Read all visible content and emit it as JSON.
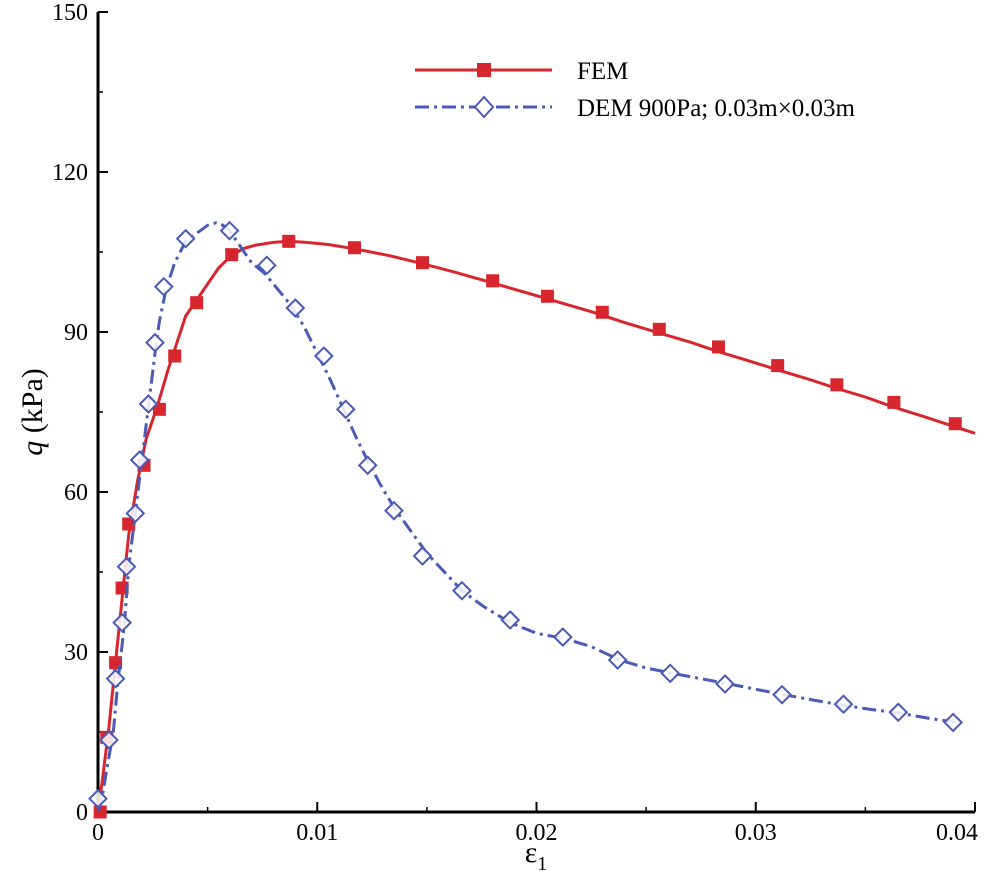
{
  "chart_data": {
    "type": "line",
    "title": "",
    "xlabel": "ε",
    "xlabel_subscript": "1",
    "ylabel_italic": "q",
    "ylabel_rest": " (kPa)",
    "xlim": [
      0,
      0.04
    ],
    "ylim": [
      0,
      150
    ],
    "x_ticks": [
      0,
      0.01,
      0.02,
      0.03,
      0.04
    ],
    "x_tick_labels": [
      "0",
      "0.01",
      "0.02",
      "0.03",
      "0.04"
    ],
    "y_ticks": [
      0,
      30,
      60,
      90,
      120,
      150
    ],
    "y_tick_labels": [
      "0",
      "30",
      "60",
      "90",
      "120",
      "150"
    ],
    "grid": false,
    "legend_position": "top-right",
    "series": [
      {
        "name": "FEM",
        "color": "#d7262e",
        "line_style": "solid",
        "marker": "filled-square",
        "line_x": [
          0,
          0.0002,
          0.0005,
          0.0008,
          0.0011,
          0.0014,
          0.0018,
          0.0022,
          0.0027,
          0.0032,
          0.0036,
          0.004,
          0.0045,
          0.005,
          0.0055,
          0.006,
          0.0066,
          0.0072,
          0.008,
          0.0087,
          0.0095,
          0.0105,
          0.0117,
          0.0133,
          0.0148,
          0.0163,
          0.018,
          0.0195,
          0.021,
          0.0225,
          0.024,
          0.0256,
          0.027,
          0.0283,
          0.0296,
          0.031,
          0.0323,
          0.0337,
          0.035,
          0.0363,
          0.0377,
          0.0391,
          0.04
        ],
        "line_y": [
          0,
          6,
          16,
          28,
          40,
          52,
          62,
          70,
          76,
          83,
          88,
          93,
          96,
          99,
          102,
          104,
          105.6,
          106.3,
          106.8,
          107,
          106.8,
          106.4,
          105.6,
          104.3,
          102.8,
          101.2,
          99.2,
          97.4,
          95.6,
          93.8,
          91.8,
          89.8,
          88.1,
          86.3,
          84.7,
          82.9,
          81.3,
          79.4,
          77.8,
          75.9,
          74.1,
          72.2,
          71.0
        ],
        "marker_x": [
          0.0001,
          0.0004,
          0.0008,
          0.0011,
          0.0014,
          0.0021,
          0.0028,
          0.0035,
          0.0045,
          0.0061,
          0.0087,
          0.0117,
          0.0148,
          0.018,
          0.0205,
          0.023,
          0.0256,
          0.0283,
          0.031,
          0.0337,
          0.0363,
          0.0391
        ],
        "marker_y": [
          0,
          14,
          28,
          42,
          54,
          65,
          75.5,
          85.5,
          95.5,
          104.5,
          107,
          105.8,
          103,
          99.6,
          96.7,
          93.7,
          90.5,
          87.2,
          83.7,
          80.1,
          76.8,
          72.8
        ]
      },
      {
        "name": "DEM 900Pa; 0.03m×0.03m",
        "color": "#4b5ab4",
        "line_style": "dash-dot",
        "marker": "open-diamond",
        "line_x": [
          0,
          0.0002,
          0.0004,
          0.0007,
          0.0009,
          0.0012,
          0.0014,
          0.0017,
          0.002,
          0.0023,
          0.0026,
          0.0028,
          0.0031,
          0.0035,
          0.004,
          0.0045,
          0.005,
          0.0054,
          0.0057,
          0.006,
          0.0065,
          0.007,
          0.0076,
          0.0082,
          0.0088,
          0.0094,
          0.01,
          0.0106,
          0.0112,
          0.0118,
          0.0124,
          0.013,
          0.0136,
          0.0143,
          0.015,
          0.0158,
          0.0166,
          0.0176,
          0.0188,
          0.02,
          0.0213,
          0.0225,
          0.0238,
          0.025,
          0.0262,
          0.0275,
          0.0288,
          0.03,
          0.0313,
          0.0326,
          0.034,
          0.0353,
          0.0366,
          0.038,
          0.0392
        ],
        "line_y": [
          0,
          3,
          8,
          15,
          24,
          35,
          46,
          56,
          66,
          76,
          86,
          92,
          98,
          103,
          107,
          108.5,
          110,
          110.5,
          110,
          109,
          106,
          103,
          101,
          98,
          95,
          91,
          86,
          81,
          75.5,
          70,
          65,
          60.5,
          56.5,
          52.5,
          48.5,
          45,
          41.5,
          38.5,
          35.5,
          33.5,
          32.5,
          31,
          28.5,
          27,
          26,
          25,
          24,
          23,
          22,
          21,
          20,
          19.2,
          18.5,
          17.5,
          16.8
        ],
        "marker_x": [
          0.0,
          0.0005,
          0.0008,
          0.0011,
          0.0013,
          0.0017,
          0.0019,
          0.0023,
          0.0026,
          0.003,
          0.004,
          0.006,
          0.0077,
          0.009,
          0.0103,
          0.0113,
          0.0123,
          0.0135,
          0.0148,
          0.0166,
          0.0188,
          0.0212,
          0.0237,
          0.0261,
          0.0286,
          0.0312,
          0.034,
          0.0365,
          0.039
        ],
        "marker_y": [
          2.5,
          13.5,
          25,
          35.5,
          46,
          56,
          66,
          76.5,
          88,
          98.5,
          107.5,
          109,
          102.5,
          94.5,
          85.5,
          75.5,
          65,
          56.5,
          48,
          41.5,
          36,
          32.8,
          28.5,
          26,
          24,
          22,
          20.2,
          18.7,
          16.8
        ]
      }
    ]
  }
}
